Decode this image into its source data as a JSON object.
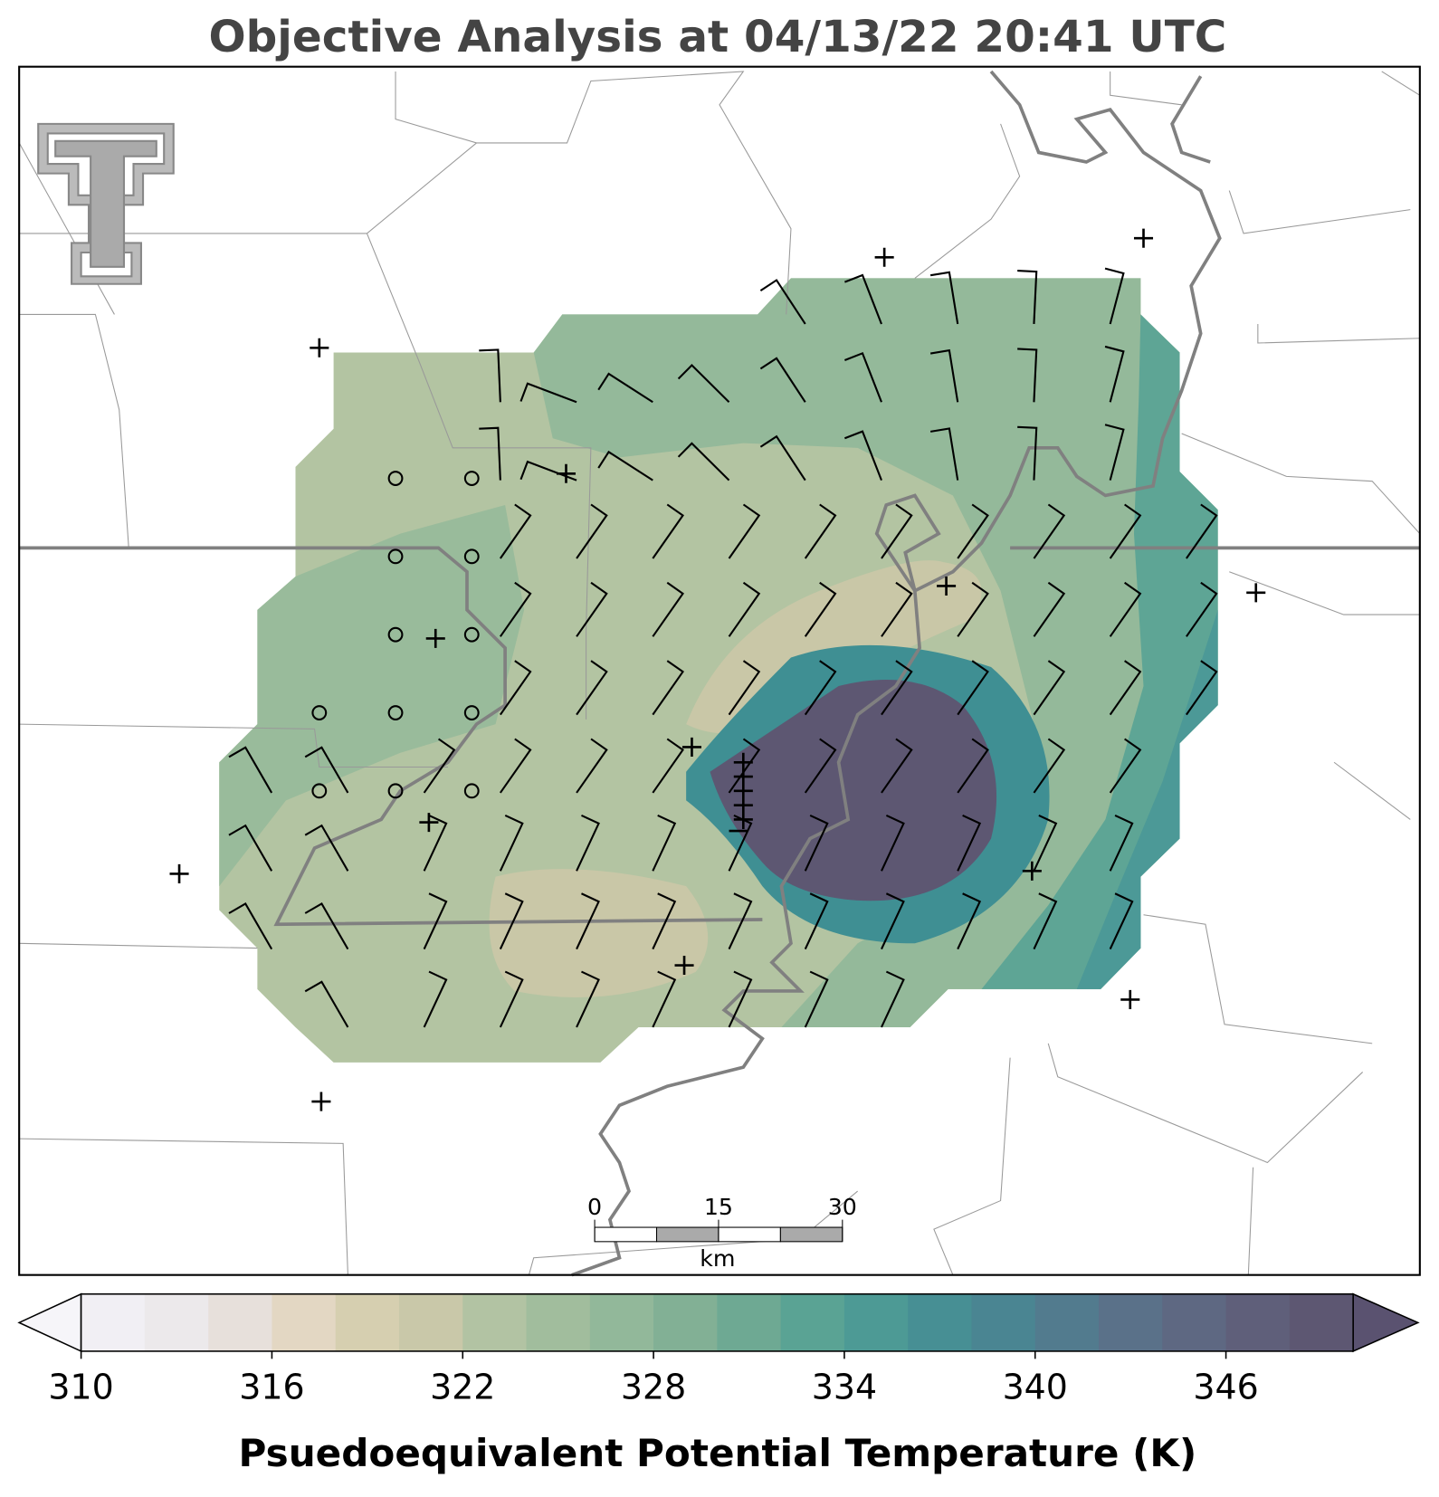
{
  "title": "Objective Analysis at 04/13/22 20:41 UTC",
  "colorbar": {
    "label": "Psuedoequivalent Potential Temperature (K)",
    "range": [
      310,
      350
    ],
    "ticks": [
      310,
      316,
      322,
      328,
      334,
      340,
      346
    ],
    "colors": [
      "#f1eff4",
      "#ece9eb",
      "#e7e0db",
      "#e3d7c3",
      "#d6cfb0",
      "#c9c8a9",
      "#b2c3a3",
      "#a1bd9d",
      "#92b89a",
      "#82b095",
      "#6ea993",
      "#5aa394",
      "#4d9a95",
      "#478f94",
      "#4a8592",
      "#527b8e",
      "#5a7189",
      "#5e6882",
      "#5f5f7a",
      "#5d5772"
    ],
    "under_color": "#f6f5f9",
    "over_color": "#5a5270"
  },
  "scale_bar": {
    "ticks": [
      0,
      15,
      30
    ],
    "unit": "km"
  }
}
